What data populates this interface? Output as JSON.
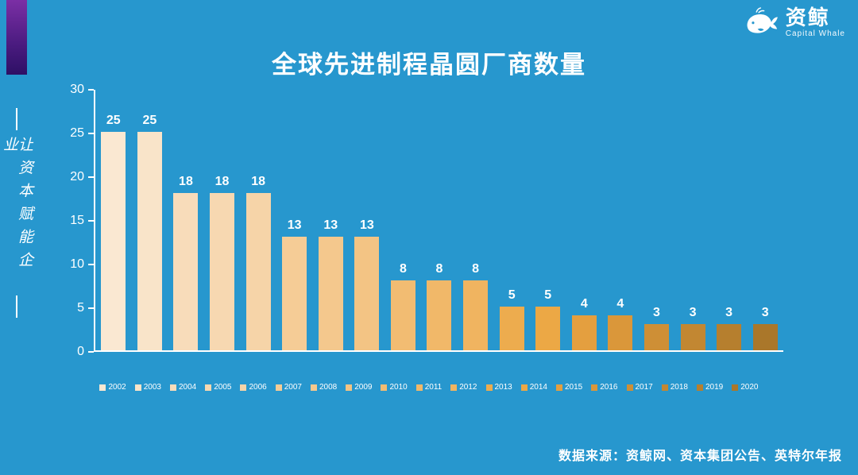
{
  "page": {
    "title": "全球先进制程晶圆厂商数量",
    "slogan_vertical": "让资本赋能企业",
    "source": "数据来源：资鲸网、资本集团公告、英特尔年报",
    "logo": {
      "name": "资鲸",
      "subtitle": "Capital Whale",
      "icon": "whale-icon"
    },
    "colors": {
      "background": "#2797CE",
      "ribbon": "#5B2D8E",
      "text": "#FFFFFF"
    }
  },
  "chart_data": {
    "type": "bar",
    "title": "全球先进制程晶圆厂商数量",
    "categories": [
      "2002",
      "2003",
      "2004",
      "2005",
      "2006",
      "2007",
      "2008",
      "2009",
      "2010",
      "2011",
      "2012",
      "2013",
      "2014",
      "2015",
      "2016",
      "2017",
      "2018",
      "2019",
      "2020"
    ],
    "values": [
      25,
      25,
      18,
      18,
      18,
      13,
      13,
      13,
      8,
      8,
      8,
      5,
      5,
      4,
      4,
      3,
      3,
      3,
      3
    ],
    "bar_colors": [
      "#FAE8D2",
      "#F9E4C9",
      "#F8DCBA",
      "#F7D8B1",
      "#F6D4A8",
      "#F5CC96",
      "#F4C88D",
      "#F3C484",
      "#F2BC72",
      "#F1B869",
      "#F0B460",
      "#EDAC4E",
      "#ECA845",
      "#E49F3F",
      "#DA973A",
      "#CE8F36",
      "#C28732",
      "#B67F2E",
      "#AA772A"
    ],
    "xlabel": "",
    "ylabel": "",
    "ylim": [
      0,
      30
    ],
    "yticks": [
      0,
      5,
      10,
      15,
      20,
      25,
      30
    ],
    "grid": false,
    "legend_position": "bottom",
    "data_labels": true
  }
}
